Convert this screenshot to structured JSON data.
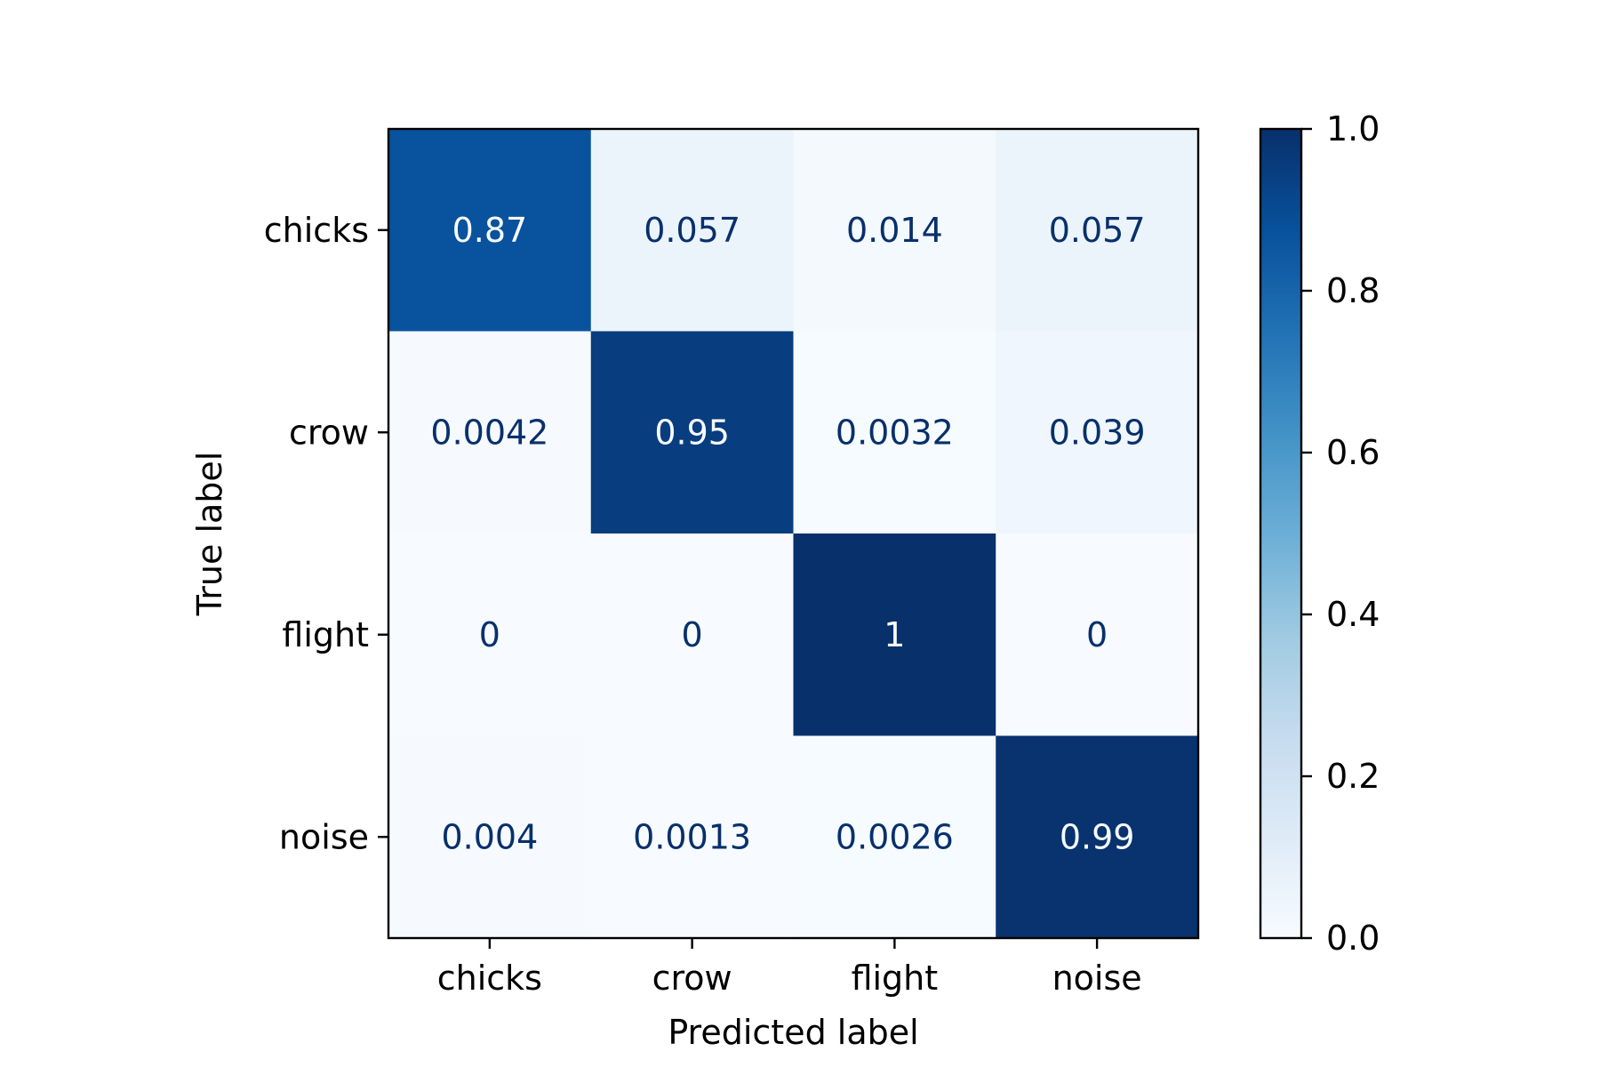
{
  "chart_data": {
    "type": "heatmap",
    "title": "",
    "xlabel": "Predicted label",
    "ylabel": "True label",
    "x_categories": [
      "chicks",
      "crow",
      "flight",
      "noise"
    ],
    "y_categories": [
      "chicks",
      "crow",
      "flight",
      "noise"
    ],
    "values": [
      [
        0.87,
        0.057,
        0.014,
        0.057
      ],
      [
        0.0042,
        0.95,
        0.0032,
        0.039
      ],
      [
        0,
        0,
        1,
        0
      ],
      [
        0.004,
        0.0013,
        0.0026,
        0.99
      ]
    ],
    "cell_labels": [
      [
        "0.87",
        "0.057",
        "0.014",
        "0.057"
      ],
      [
        "0.0042",
        "0.95",
        "0.0032",
        "0.039"
      ],
      [
        "0",
        "0",
        "1",
        "0"
      ],
      [
        "0.004",
        "0.0013",
        "0.0026",
        "0.99"
      ]
    ],
    "colormap": "Blues",
    "colormap_stops": [
      "#f7fbff",
      "#deebf7",
      "#c6dbef",
      "#9ecae1",
      "#6baed6",
      "#4292c6",
      "#2171b5",
      "#08519c",
      "#08306b"
    ],
    "text_color_dark": "#08306b",
    "text_color_light": "#f7fbff",
    "colorbar": {
      "range": [
        0.0,
        1.0
      ],
      "ticks": [
        0.0,
        0.2,
        0.4,
        0.6,
        0.8,
        1.0
      ],
      "tick_labels": [
        "0.0",
        "0.2",
        "0.4",
        "0.6",
        "0.8",
        "1.0"
      ]
    },
    "grid": false,
    "legend": "none"
  }
}
